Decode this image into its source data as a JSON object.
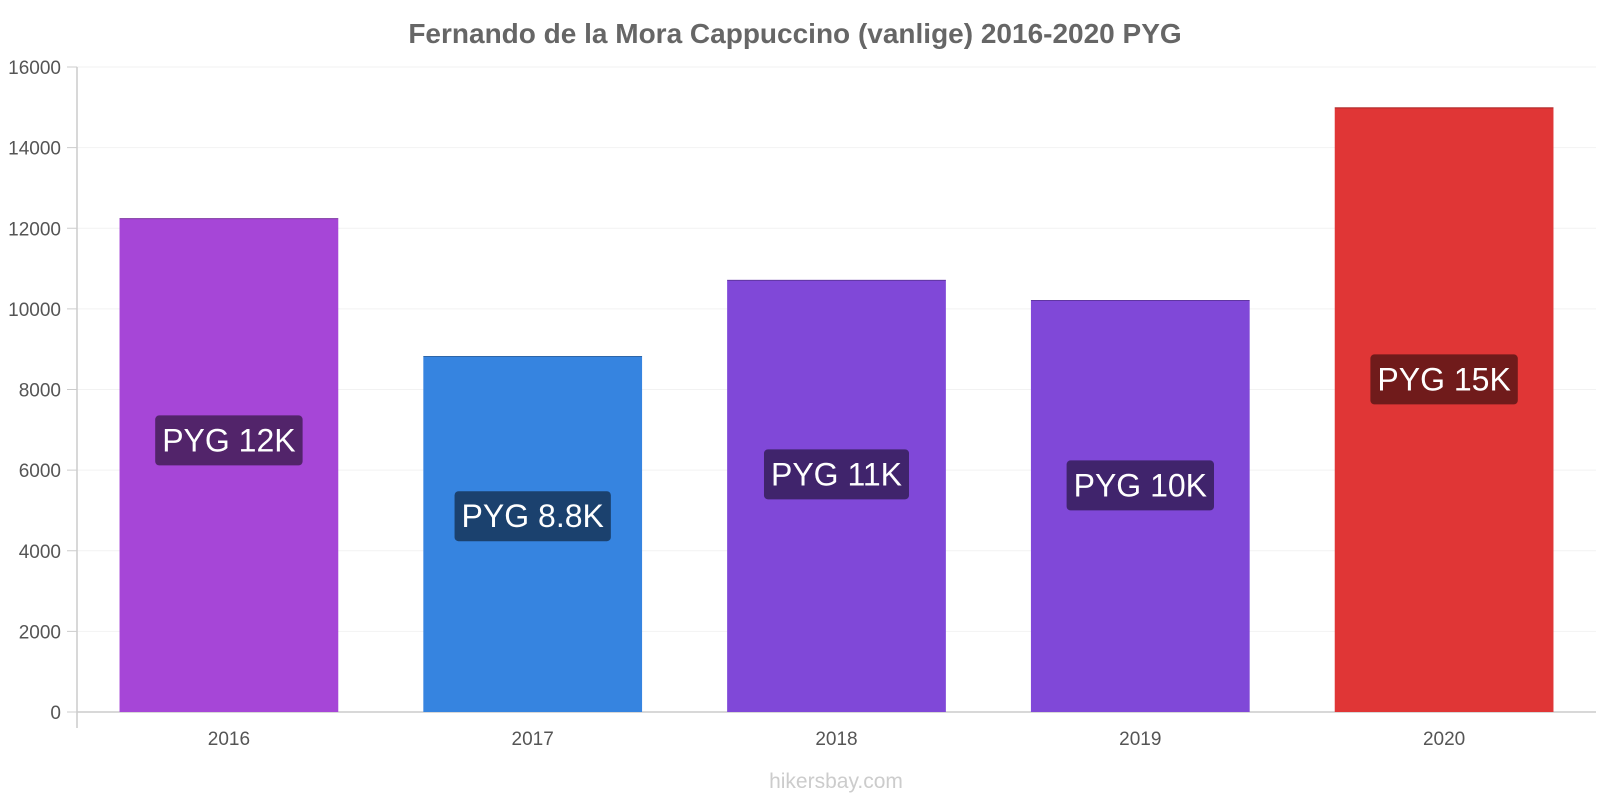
{
  "chart_data": {
    "type": "bar",
    "title": "Fernando de la Mora Cappuccino (vanlige) 2016-2020 PYG",
    "categories": [
      "2016",
      "2017",
      "2018",
      "2019",
      "2020"
    ],
    "values": [
      12250,
      8830,
      10720,
      10220,
      15000
    ],
    "data_labels": [
      "PYG 12K",
      "PYG 8.8K",
      "PYG 11K",
      "PYG 10K",
      "PYG 15K"
    ],
    "bar_colors": [
      "#a646d7",
      "#3684e0",
      "#8048d8",
      "#8048d8",
      "#e03636"
    ],
    "label_bg_colors": [
      "#52246a",
      "#1b416e",
      "#40246c",
      "#40246c",
      "#701b1b"
    ],
    "ylim": [
      0,
      16000
    ],
    "yticks": [
      0,
      2000,
      4000,
      6000,
      8000,
      10000,
      12000,
      14000,
      16000
    ],
    "grid": true,
    "legend": "none",
    "xlabel": "",
    "ylabel": ""
  },
  "watermark": "hikersbay.com"
}
